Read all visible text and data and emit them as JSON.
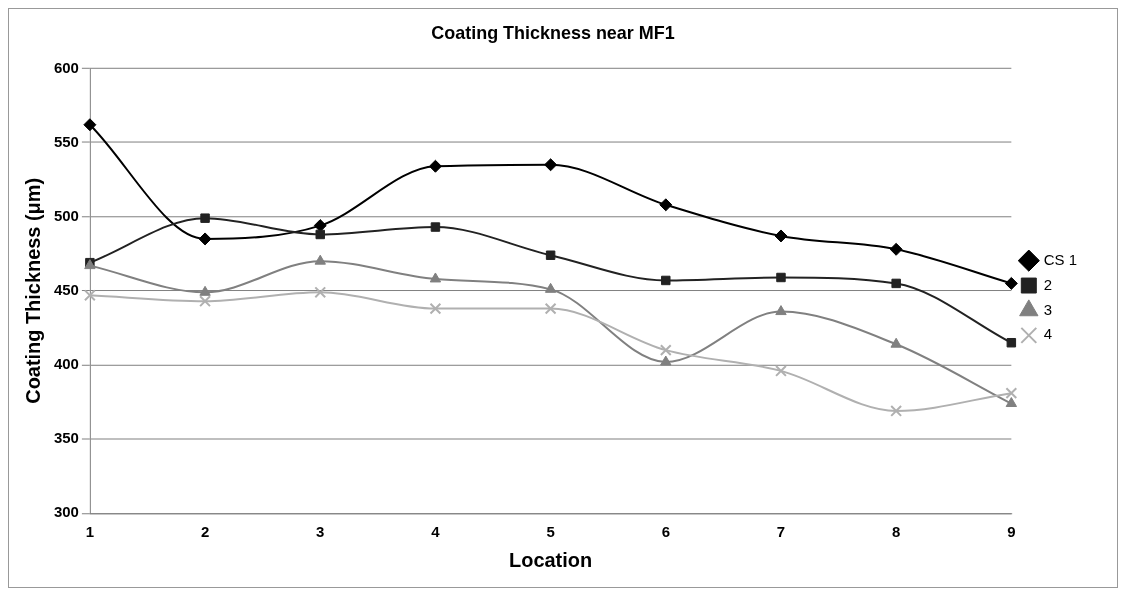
{
  "chart_data": {
    "type": "line",
    "title": "Coating Thickness near MF1",
    "xlabel": "Location",
    "ylabel": "Coating Thickness (μm)",
    "categories": [
      "1",
      "2",
      "3",
      "4",
      "5",
      "6",
      "7",
      "8",
      "9"
    ],
    "series": [
      {
        "name": "CS 1",
        "color": "#000000",
        "marker": "diamond",
        "values": [
          562,
          485,
          494,
          534,
          535,
          508,
          487,
          478,
          455
        ]
      },
      {
        "name": "2",
        "color": "#222222",
        "marker": "square",
        "values": [
          469,
          499,
          488,
          493,
          474,
          457,
          459,
          455,
          415
        ]
      },
      {
        "name": "3",
        "color": "#808080",
        "marker": "triangle",
        "values": [
          467,
          449,
          470,
          458,
          451,
          402,
          436,
          414,
          374
        ]
      },
      {
        "name": "4",
        "color": "#b0b0b0",
        "marker": "cross",
        "values": [
          447,
          443,
          449,
          438,
          438,
          410,
          396,
          369,
          381
        ]
      }
    ],
    "ylim": [
      300,
      600
    ],
    "yticks": [
      300,
      350,
      400,
      450,
      500,
      550,
      600
    ],
    "grid": "y",
    "legend": "right",
    "line_style": "solid"
  }
}
